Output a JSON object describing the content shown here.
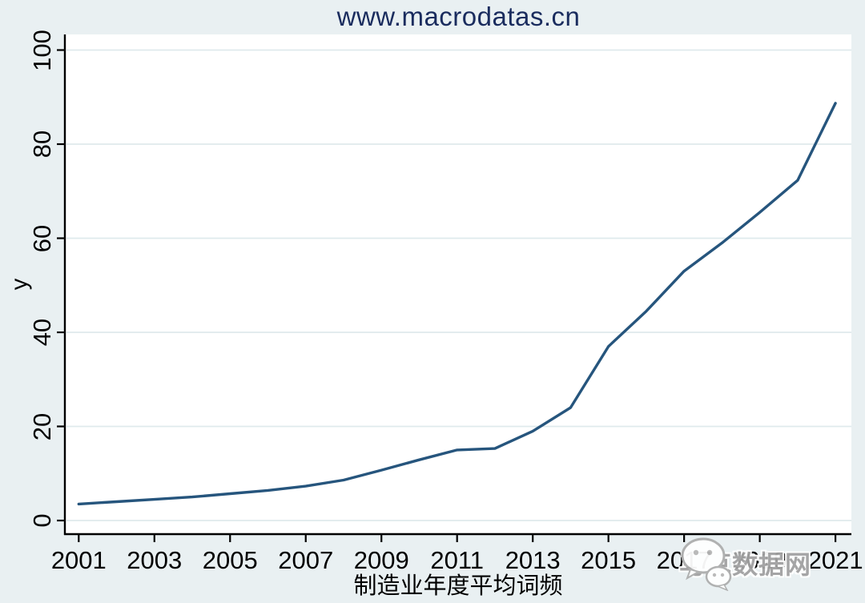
{
  "page": {
    "background_color": "#e9f0f2",
    "title": "www.macrodatas.cn",
    "title_color": "#1a2c5e"
  },
  "chart_data": {
    "type": "line",
    "title": "www.macrodatas.cn",
    "xlabel": "制造业年度平均词频",
    "ylabel": "y",
    "x": [
      2001,
      2002,
      2003,
      2004,
      2005,
      2006,
      2007,
      2008,
      2009,
      2010,
      2011,
      2012,
      2013,
      2014,
      2015,
      2016,
      2017,
      2018,
      2019,
      2020,
      2021
    ],
    "y": [
      3.5,
      4.0,
      4.5,
      5.0,
      5.7,
      6.4,
      7.3,
      8.6,
      10.7,
      12.9,
      15.0,
      15.3,
      19.0,
      24.0,
      37.0,
      44.5,
      53.0,
      59.0,
      65.5,
      72.3,
      88.7
    ],
    "series_name": "制造业年度平均词频",
    "xlim": [
      2001,
      2021
    ],
    "ylim": [
      0,
      100
    ],
    "x_ticks": [
      2001,
      2003,
      2005,
      2007,
      2009,
      2011,
      2013,
      2015,
      2017,
      2019,
      2021
    ],
    "x_tick_labels": [
      "2001",
      "2003",
      "2005",
      "2007",
      "2009",
      "2011",
      "2013",
      "2015",
      "2017",
      "2019",
      "2021"
    ],
    "y_ticks": [
      0,
      20,
      40,
      60,
      80,
      100
    ],
    "y_tick_labels": [
      "0",
      "20",
      "40",
      "60",
      "80",
      "100"
    ],
    "grid": "horizontal",
    "legend": "none",
    "line_color": "#26557d",
    "grid_color": "#dfeaec",
    "axis_color": "#000000",
    "plot_background": "#ffffff"
  },
  "watermark": {
    "text": "马克数据网",
    "icon": "wechat-icon",
    "color": "#a2a2a2"
  }
}
